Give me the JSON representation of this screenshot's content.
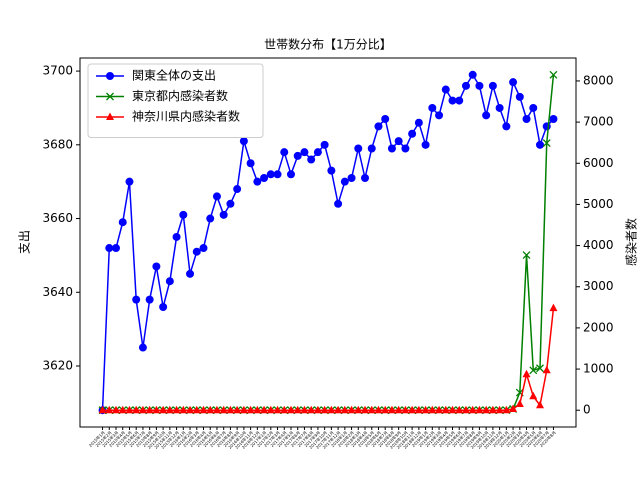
{
  "chart_data": {
    "type": "line",
    "title": "世帯数分布【1万分比】",
    "ylabel": "支出",
    "y2label": "感染者数",
    "legend": "upper left",
    "categories": [
      "2015年1月",
      "2015年2月",
      "2015年3月",
      "2015年4月",
      "2015年5月",
      "2015年6月",
      "2015年7月",
      "2015年8月",
      "2015年9月",
      "2015年10月",
      "2015年11月",
      "2015年12月",
      "2016年1月",
      "2016年2月",
      "2016年3月",
      "2016年4月",
      "2016年5月",
      "2016年6月",
      "2016年7月",
      "2016年8月",
      "2016年9月",
      "2016年10月",
      "2016年11月",
      "2016年12月",
      "2017年1月",
      "2017年2月",
      "2017年3月",
      "2017年4月",
      "2017年5月",
      "2017年6月",
      "2017年7月",
      "2017年8月",
      "2017年9月",
      "2017年10月",
      "2017年11月",
      "2017年12月",
      "2018年1月",
      "2018年2月",
      "2018年3月",
      "2018年4月",
      "2018年5月",
      "2018年6月",
      "2018年7月",
      "2018年8月",
      "2018年9月",
      "2018年10月",
      "2018年11月",
      "2018年12月",
      "2019年1月",
      "2019年2月",
      "2019年3月",
      "2019年4月",
      "2019年5月",
      "2019年6月",
      "2019年7月",
      "2019年8月",
      "2019年9月",
      "2019年10月",
      "2019年11月",
      "2019年12月",
      "2020年1月",
      "2020年2月",
      "2020年3月",
      "2020年4月",
      "2020年5月",
      "2020年6月",
      "2020年7月",
      "2020年8月"
    ],
    "series": [
      {
        "name": "関東全体の支出",
        "color": "#0000ff",
        "marker": "circle",
        "values": [
          3608,
          3652,
          3652,
          3659,
          3670,
          3638,
          3625,
          3638,
          3647,
          3636,
          3643,
          3655,
          3661,
          3645,
          3651,
          3652,
          3660,
          3666,
          3661,
          3664,
          3668,
          3681,
          3675,
          3670,
          3671,
          3672,
          3672,
          3678,
          3672,
          3677,
          3678,
          3676,
          3678,
          3680,
          3673,
          3664,
          3670,
          3671,
          3679,
          3671,
          3679,
          3685,
          3687,
          3679,
          3681,
          3679,
          3683,
          3686,
          3680,
          3690,
          3688,
          3695,
          3692,
          3692,
          3696,
          3699,
          3696,
          3688,
          3696,
          3690,
          3685,
          3697,
          3693,
          3687,
          3690,
          3680,
          3685,
          3687
        ]
      },
      {
        "name": "東京都内感染者数",
        "color": "#008000",
        "marker": "x",
        "axis": "y2",
        "values": [
          0,
          0,
          0,
          0,
          0,
          0,
          0,
          0,
          0,
          0,
          0,
          0,
          0,
          0,
          0,
          0,
          0,
          0,
          0,
          0,
          0,
          0,
          0,
          0,
          0,
          0,
          0,
          0,
          0,
          0,
          0,
          0,
          0,
          0,
          0,
          0,
          0,
          0,
          0,
          0,
          0,
          0,
          0,
          0,
          0,
          0,
          0,
          0,
          0,
          0,
          0,
          0,
          0,
          0,
          0,
          0,
          0,
          0,
          0,
          0,
          0,
          30,
          430,
          3770,
          970,
          1020,
          6490,
          8150
        ]
      },
      {
        "name": "神奈川県内感染者数",
        "color": "#ff0000",
        "marker": "triangle",
        "axis": "y2",
        "values": [
          0,
          0,
          0,
          0,
          0,
          0,
          0,
          0,
          0,
          0,
          0,
          0,
          0,
          0,
          0,
          0,
          0,
          0,
          0,
          0,
          0,
          0,
          0,
          0,
          0,
          0,
          0,
          0,
          0,
          0,
          0,
          0,
          0,
          0,
          0,
          0,
          0,
          0,
          0,
          0,
          0,
          0,
          0,
          0,
          0,
          0,
          0,
          0,
          0,
          0,
          0,
          0,
          0,
          0,
          0,
          0,
          0,
          0,
          0,
          0,
          0,
          30,
          150,
          875,
          340,
          120,
          970,
          2480
        ]
      }
    ],
    "ylim": [
      3603.45,
      3703.55
    ],
    "yticks": [
      3620,
      3640,
      3660,
      3680,
      3700
    ],
    "y2lim": [
      -407.5,
      8557.5
    ],
    "y2ticks": [
      0,
      1000,
      2000,
      3000,
      4000,
      5000,
      6000,
      7000,
      8000
    ]
  }
}
